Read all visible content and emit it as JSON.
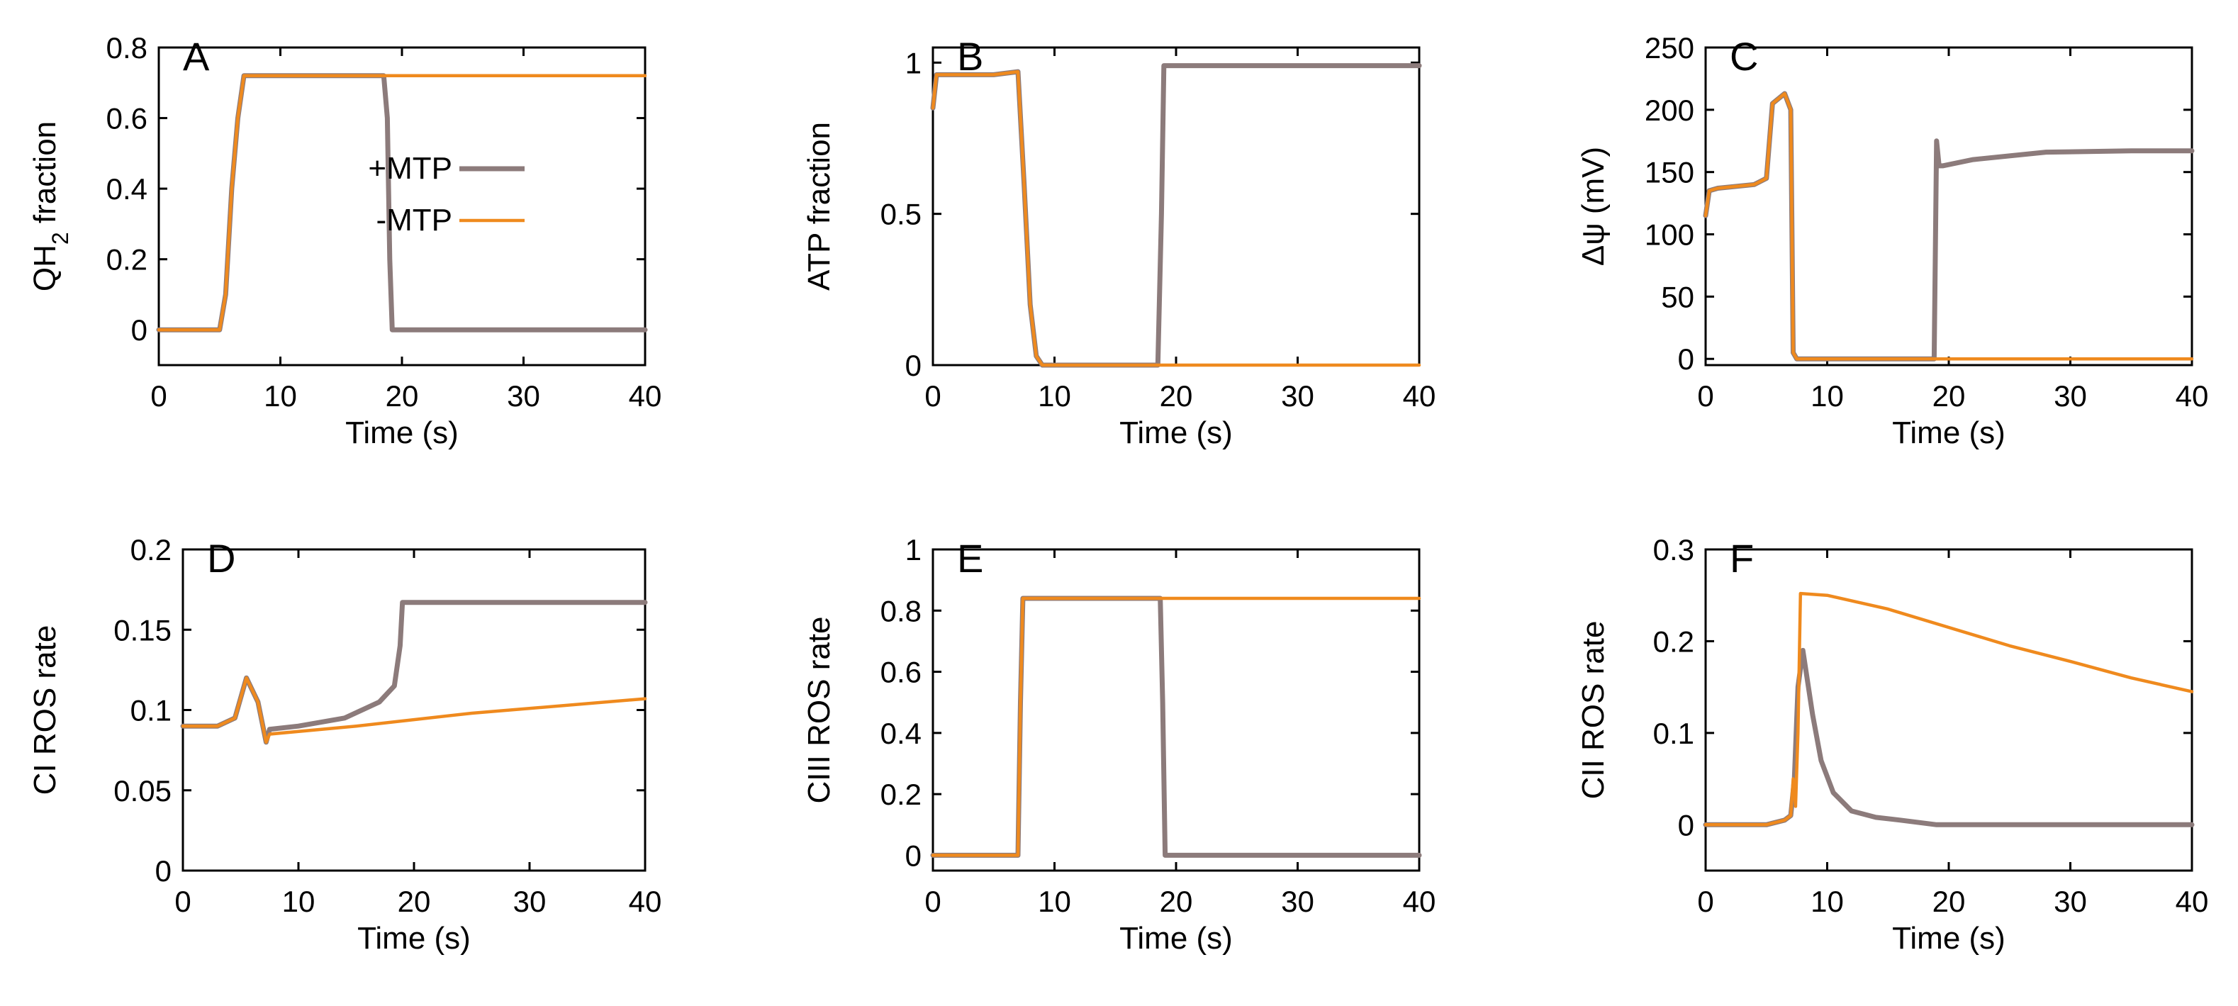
{
  "colors": {
    "with_mtp": "#8c7b7b",
    "without_mtp": "#ef8a1e"
  },
  "legend": {
    "items": [
      {
        "label": "+MTP",
        "color": "#8c7b7b"
      },
      {
        "label": "-MTP",
        "color": "#ef8a1e"
      }
    ]
  },
  "chart_data": [
    {
      "panel": "A",
      "type": "line",
      "xlabel": "Time (s)",
      "ylabel": "QH2 fraction",
      "ylabel_main": "QH",
      "ylabel_sub": "2",
      "ylabel_rest": " fraction",
      "xlim": [
        0,
        40
      ],
      "ylim": [
        -0.1,
        0.8
      ],
      "xticks": [
        0,
        10,
        20,
        30,
        40
      ],
      "xtick_labels": [
        "0",
        "10",
        "20",
        "30",
        "40"
      ],
      "yticks": [
        0,
        0.2,
        0.4,
        0.6,
        0.8
      ],
      "ytick_labels": [
        "0",
        "0.2",
        "0.4",
        "0.6",
        "0.8"
      ],
      "series": [
        {
          "name": "+MTP",
          "x": [
            0,
            5,
            5.5,
            6,
            6.5,
            7,
            18.5,
            18.8,
            19,
            19.2,
            40
          ],
          "y": [
            0,
            0,
            0.1,
            0.4,
            0.6,
            0.72,
            0.72,
            0.6,
            0.2,
            0,
            0
          ]
        },
        {
          "name": "-MTP",
          "x": [
            0,
            5,
            5.5,
            6,
            6.5,
            7,
            40
          ],
          "y": [
            0,
            0,
            0.1,
            0.4,
            0.6,
            0.72,
            0.72
          ]
        }
      ]
    },
    {
      "panel": "B",
      "type": "line",
      "xlabel": "Time (s)",
      "ylabel": "ATP fraction",
      "xlim": [
        0,
        40
      ],
      "ylim": [
        0,
        1.05
      ],
      "xticks": [
        0,
        10,
        20,
        30,
        40
      ],
      "xtick_labels": [
        "0",
        "10",
        "20",
        "30",
        "40"
      ],
      "yticks": [
        0,
        0.5,
        1
      ],
      "ytick_labels": [
        "0",
        "0.5",
        "1"
      ],
      "series": [
        {
          "name": "+MTP",
          "x": [
            0,
            0.3,
            5,
            7,
            7.5,
            8,
            8.5,
            9,
            18.5,
            18.8,
            19,
            40
          ],
          "y": [
            0.85,
            0.96,
            0.96,
            0.97,
            0.6,
            0.2,
            0.03,
            0,
            0,
            0.5,
            0.99,
            0.99
          ]
        },
        {
          "name": "-MTP",
          "x": [
            0,
            0.3,
            5,
            7,
            7.5,
            8,
            8.5,
            9,
            40
          ],
          "y": [
            0.85,
            0.96,
            0.96,
            0.97,
            0.6,
            0.2,
            0.03,
            0,
            0
          ]
        }
      ]
    },
    {
      "panel": "C",
      "type": "line",
      "xlabel": "Time (s)",
      "ylabel": "Δψ (mV)",
      "xlim": [
        0,
        40
      ],
      "ylim": [
        -5,
        250
      ],
      "xticks": [
        0,
        10,
        20,
        30,
        40
      ],
      "xtick_labels": [
        "0",
        "10",
        "20",
        "30",
        "40"
      ],
      "yticks": [
        0,
        50,
        100,
        150,
        200,
        250
      ],
      "ytick_labels": [
        "0",
        "50",
        "100",
        "150",
        "200",
        "250"
      ],
      "series": [
        {
          "name": "+MTP",
          "x": [
            0,
            0.3,
            1,
            4,
            5,
            5.5,
            6.5,
            7,
            7.2,
            7.5,
            18.8,
            19,
            19.2,
            19.5,
            22,
            28,
            35,
            40
          ],
          "y": [
            115,
            135,
            137,
            140,
            145,
            205,
            213,
            200,
            5,
            0,
            0,
            175,
            155,
            155,
            160,
            166,
            167,
            167
          ]
        },
        {
          "name": "-MTP",
          "x": [
            0,
            0.3,
            1,
            4,
            5,
            5.5,
            6.5,
            7,
            7.2,
            7.5,
            40
          ],
          "y": [
            115,
            135,
            137,
            140,
            145,
            205,
            213,
            200,
            5,
            0,
            0
          ]
        }
      ]
    },
    {
      "panel": "D",
      "type": "line",
      "xlabel": "Time (s)",
      "ylabel": "CI ROS rate",
      "xlim": [
        0,
        40
      ],
      "ylim": [
        0,
        0.2
      ],
      "xticks": [
        0,
        10,
        20,
        30,
        40
      ],
      "xtick_labels": [
        "0",
        "10",
        "20",
        "30",
        "40"
      ],
      "yticks": [
        0,
        0.05,
        0.1,
        0.15,
        0.2
      ],
      "ytick_labels": [
        "0",
        "0.05",
        "0.1",
        "0.15",
        "0.2"
      ],
      "series": [
        {
          "name": "+MTP",
          "x": [
            0,
            3,
            4.5,
            5.5,
            6.5,
            7.2,
            7.5,
            10,
            14,
            17,
            18.3,
            18.8,
            19,
            40
          ],
          "y": [
            0.09,
            0.09,
            0.095,
            0.12,
            0.105,
            0.08,
            0.088,
            0.09,
            0.095,
            0.105,
            0.115,
            0.14,
            0.167,
            0.167
          ]
        },
        {
          "name": "-MTP",
          "x": [
            0,
            3,
            4.5,
            5.5,
            6.5,
            7.2,
            7.5,
            15,
            25,
            40
          ],
          "y": [
            0.09,
            0.09,
            0.095,
            0.12,
            0.105,
            0.08,
            0.085,
            0.09,
            0.098,
            0.107
          ]
        }
      ]
    },
    {
      "panel": "E",
      "type": "line",
      "xlabel": "Time (s)",
      "ylabel": "CIII ROS rate",
      "xlim": [
        0,
        40
      ],
      "ylim": [
        -0.05,
        1
      ],
      "xticks": [
        0,
        10,
        20,
        30,
        40
      ],
      "xtick_labels": [
        "0",
        "10",
        "20",
        "30",
        "40"
      ],
      "yticks": [
        0,
        0.2,
        0.4,
        0.6,
        0.8,
        1
      ],
      "ytick_labels": [
        "0",
        "0.2",
        "0.4",
        "0.6",
        "0.8",
        "1"
      ],
      "series": [
        {
          "name": "+MTP",
          "x": [
            0,
            7,
            7.2,
            7.4,
            18.7,
            18.9,
            19.1,
            40
          ],
          "y": [
            0,
            0,
            0.5,
            0.84,
            0.84,
            0.5,
            0,
            0
          ]
        },
        {
          "name": "-MTP",
          "x": [
            0,
            7,
            7.2,
            7.4,
            40
          ],
          "y": [
            0,
            0,
            0.5,
            0.84,
            0.84
          ]
        }
      ]
    },
    {
      "panel": "F",
      "type": "line",
      "xlabel": "Time (s)",
      "ylabel": "CII ROS rate",
      "xlim": [
        0,
        40
      ],
      "ylim": [
        -0.05,
        0.3
      ],
      "xticks": [
        0,
        10,
        20,
        30,
        40
      ],
      "xtick_labels": [
        "0",
        "10",
        "20",
        "30",
        "40"
      ],
      "yticks": [
        0,
        0.1,
        0.2,
        0.3
      ],
      "ytick_labels": [
        "0",
        "0.1",
        "0.2",
        "0.3"
      ],
      "series": [
        {
          "name": "+MTP",
          "x": [
            0,
            5,
            6.5,
            7,
            7.3,
            7.6,
            8,
            8.8,
            9.5,
            10.5,
            12,
            14,
            16,
            19,
            40
          ],
          "y": [
            0,
            0,
            0.005,
            0.01,
            0.05,
            0.15,
            0.19,
            0.12,
            0.07,
            0.035,
            0.015,
            0.008,
            0.005,
            0,
            0
          ]
        },
        {
          "name": "-MTP",
          "x": [
            0,
            5,
            6.5,
            7,
            7.2,
            7.4,
            7.6,
            7.8,
            10,
            15,
            20,
            25,
            30,
            35,
            40
          ],
          "y": [
            0,
            0,
            0.005,
            0.01,
            0.05,
            0.02,
            0.1,
            0.252,
            0.25,
            0.235,
            0.215,
            0.195,
            0.178,
            0.16,
            0.145
          ]
        }
      ]
    }
  ]
}
